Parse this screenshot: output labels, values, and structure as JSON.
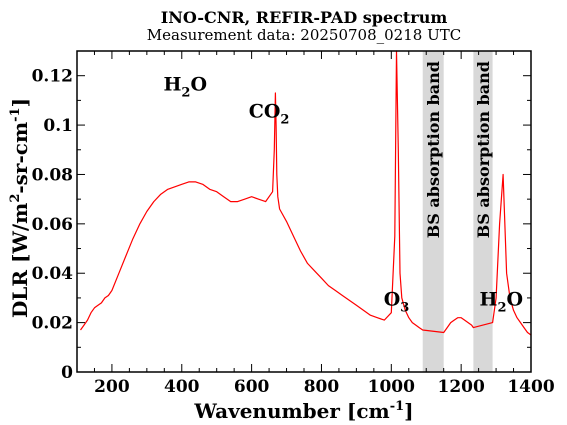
{
  "chart_data": {
    "type": "line",
    "title": "INO-CNR, REFIR-PAD spectrum",
    "subtitle": "Measurement data: 20250708_0218 UTC",
    "xlabel": "Wavenumber [cm",
    "xlabel_sup": "-1",
    "xlabel_end": "]",
    "ylabel_main": "DLR [W/m",
    "ylabel_sup1": "2",
    "ylabel_mid": "-sr-cm",
    "ylabel_sup2": "-1",
    "ylabel_end": "]",
    "xlim": [
      100,
      1400
    ],
    "ylim": [
      0,
      0.13
    ],
    "x_ticks": [
      200,
      400,
      600,
      800,
      1000,
      1200,
      1400
    ],
    "y_ticks": [
      0,
      0.02,
      0.04,
      0.06,
      0.08,
      0.1,
      0.12
    ],
    "y_tick_labels": [
      "0",
      "0.02",
      "0.04",
      "0.06",
      "0.08",
      "0.1",
      "0.12"
    ],
    "line_color": "#ff0000",
    "band_color": "#d8d8d8",
    "shaded_bands": [
      {
        "label": "BS absorption band",
        "x_range": [
          1090,
          1150
        ]
      },
      {
        "label": "BS absorption band",
        "x_range": [
          1235,
          1290
        ]
      }
    ],
    "annotations": [
      {
        "base": "H",
        "sub": "2",
        "tail": "O",
        "x": 410,
        "y": 0.114
      },
      {
        "base": "CO",
        "sub": "2",
        "tail": "",
        "x": 650,
        "y": 0.103
      },
      {
        "base": "O",
        "sub": "3",
        "tail": "",
        "x": 1015,
        "y": 0.027
      },
      {
        "base": "H",
        "sub": "2",
        "tail": "O",
        "x": 1315,
        "y": 0.027
      }
    ],
    "series": [
      {
        "x": [
          110,
          120,
          130,
          140,
          150,
          160,
          170,
          180,
          190,
          200,
          220,
          240,
          260,
          280,
          300,
          320,
          340,
          360,
          380,
          400,
          420,
          440,
          460,
          480,
          500,
          520,
          540,
          560,
          580,
          600,
          620,
          640,
          660,
          665,
          668,
          670,
          672,
          675,
          680,
          700,
          720,
          740,
          760,
          780,
          800,
          820,
          840,
          860,
          880,
          900,
          920,
          940,
          960,
          980,
          1000,
          1010,
          1015,
          1020,
          1025,
          1030,
          1040,
          1050,
          1060,
          1070,
          1080,
          1090,
          1150,
          1160,
          1170,
          1180,
          1190,
          1200,
          1210,
          1220,
          1230,
          1235,
          1290,
          1300,
          1310,
          1320,
          1330,
          1340,
          1350,
          1360,
          1370,
          1380,
          1390,
          1400
        ],
        "y": [
          0.017,
          0.019,
          0.021,
          0.024,
          0.026,
          0.027,
          0.028,
          0.03,
          0.031,
          0.033,
          0.04,
          0.047,
          0.054,
          0.06,
          0.065,
          0.069,
          0.072,
          0.074,
          0.075,
          0.076,
          0.077,
          0.077,
          0.076,
          0.074,
          0.073,
          0.071,
          0.069,
          0.069,
          0.07,
          0.071,
          0.07,
          0.069,
          0.073,
          0.09,
          0.113,
          0.1,
          0.08,
          0.071,
          0.066,
          0.061,
          0.055,
          0.049,
          0.044,
          0.041,
          0.038,
          0.035,
          0.033,
          0.031,
          0.029,
          0.027,
          0.025,
          0.023,
          0.022,
          0.021,
          0.024,
          0.055,
          0.13,
          0.09,
          0.04,
          0.03,
          0.025,
          0.022,
          0.02,
          0.019,
          0.018,
          0.017,
          0.016,
          0.018,
          0.02,
          0.021,
          0.022,
          0.022,
          0.021,
          0.02,
          0.019,
          0.018,
          0.02,
          0.03,
          0.06,
          0.08,
          0.04,
          0.03,
          0.025,
          0.022,
          0.02,
          0.018,
          0.016,
          0.015
        ]
      }
    ]
  }
}
